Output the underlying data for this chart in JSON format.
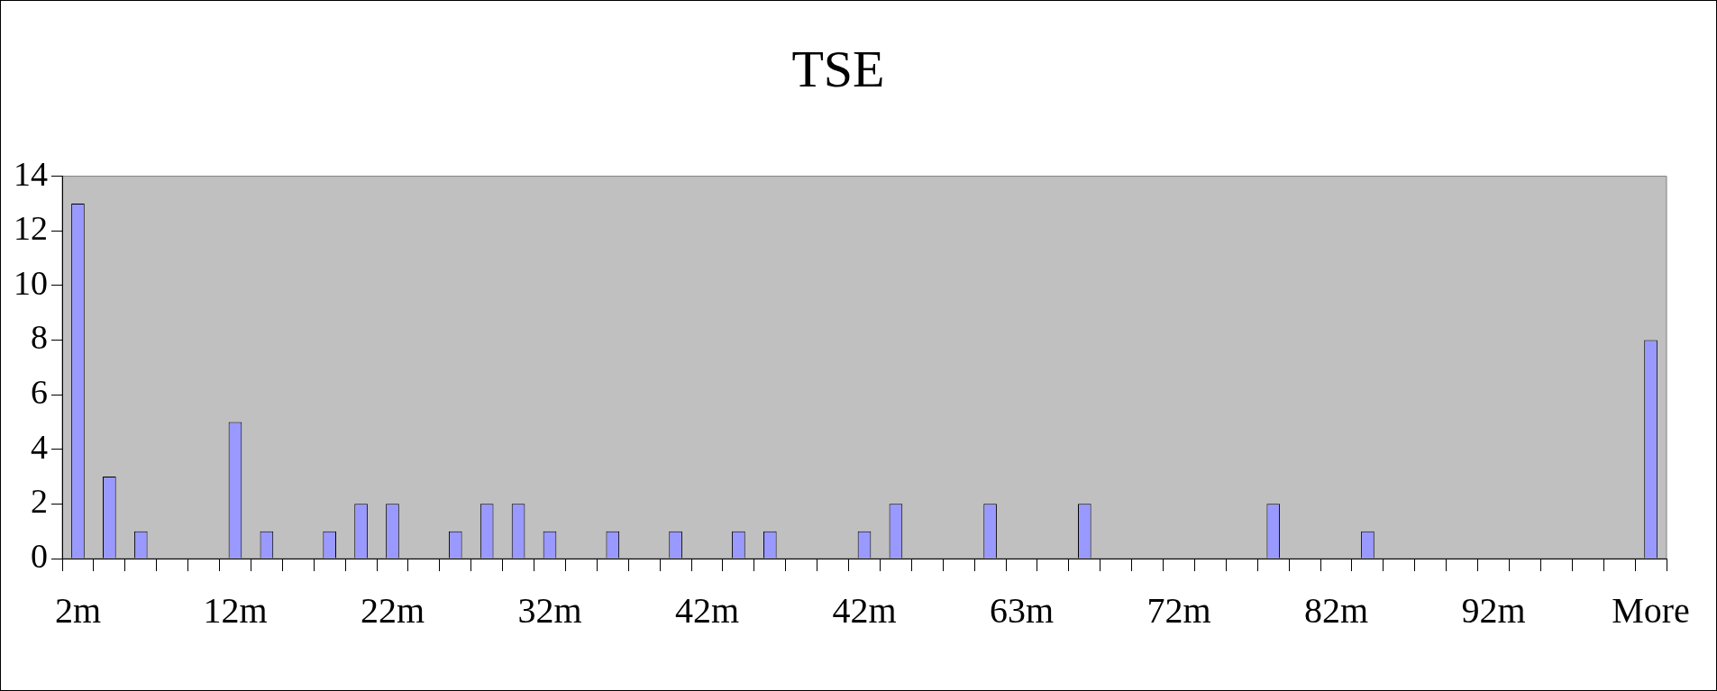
{
  "chart_data": {
    "type": "bar",
    "title": "TSE",
    "categories": [
      "2m",
      null,
      null,
      null,
      null,
      "12m",
      null,
      null,
      null,
      null,
      "22m",
      null,
      null,
      null,
      null,
      "32m",
      null,
      null,
      null,
      null,
      "42m",
      null,
      null,
      null,
      null,
      "42m",
      null,
      null,
      null,
      null,
      "63m",
      null,
      null,
      null,
      null,
      "72m",
      null,
      null,
      null,
      null,
      "82m",
      null,
      null,
      null,
      null,
      "92m",
      null,
      null,
      null,
      null,
      "More"
    ],
    "values": [
      13,
      3,
      1,
      0,
      0,
      5,
      1,
      0,
      1,
      2,
      2,
      0,
      1,
      2,
      2,
      1,
      0,
      1,
      0,
      1,
      0,
      1,
      1,
      0,
      0,
      1,
      2,
      0,
      0,
      2,
      0,
      0,
      2,
      0,
      0,
      0,
      0,
      0,
      2,
      0,
      0,
      1,
      0,
      0,
      0,
      0,
      0,
      0,
      0,
      0,
      8
    ],
    "color": "#9999ff",
    "ylim": [
      0,
      14
    ],
    "yticks": [
      0,
      2,
      4,
      6,
      8,
      10,
      12,
      14
    ],
    "grid": false,
    "legend": false
  }
}
